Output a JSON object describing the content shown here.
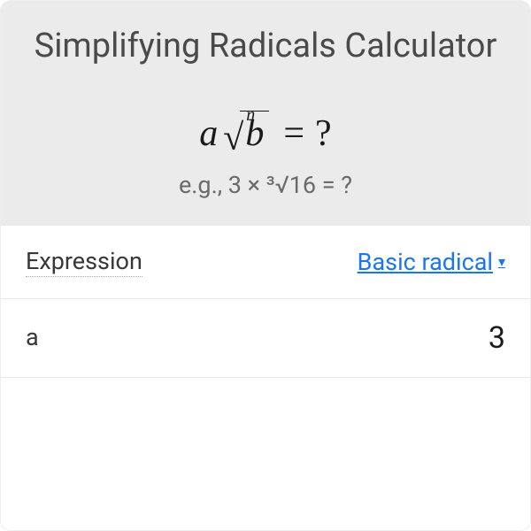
{
  "title": "Simplifying Radicals Calculator",
  "formula": {
    "coefficient": "a",
    "root_index": "n",
    "radicand": "b",
    "equals": "=",
    "result": "?"
  },
  "example": "e.g., 3 × ³√16 = ?",
  "rows": {
    "expression": {
      "label": "Expression",
      "dropdown_value": "Basic radical",
      "dropdown_arrow": "▾"
    },
    "a": {
      "label": "a",
      "value": "3"
    }
  },
  "colors": {
    "header_bg": "#ebebeb",
    "title_color": "#4a4a4a",
    "text_color": "#1a1a1a",
    "muted_color": "#6a6a6a",
    "link_color": "#1976f0",
    "border_color": "#e8e8e8"
  }
}
